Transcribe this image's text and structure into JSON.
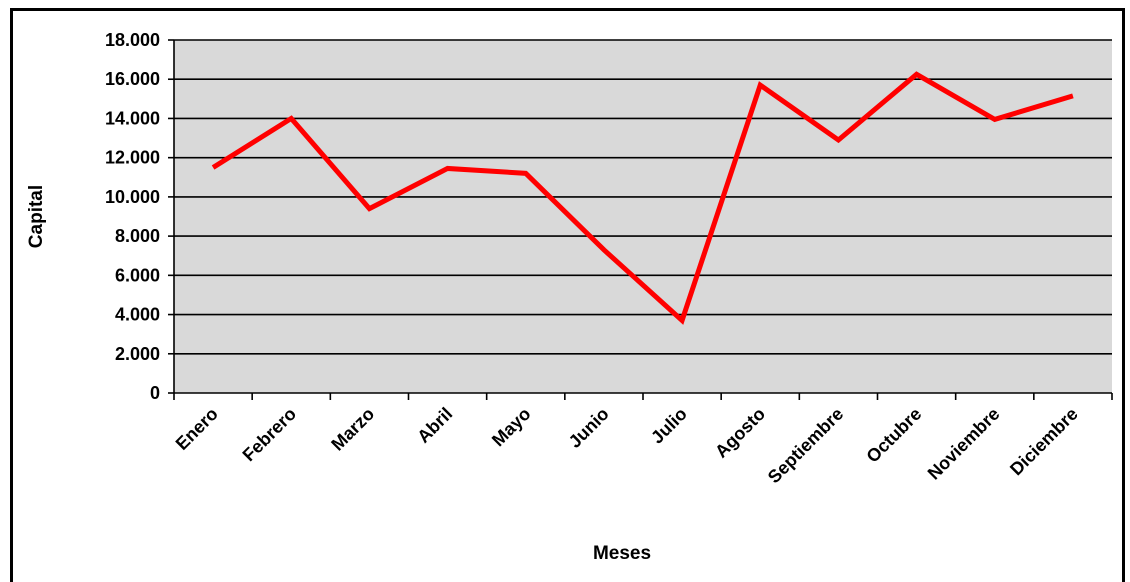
{
  "chart_data": {
    "type": "line",
    "title": "",
    "xlabel": "Meses",
    "ylabel": "Capital",
    "categories": [
      "Enero",
      "Febrero",
      "Marzo",
      "Abril",
      "Mayo",
      "Junio",
      "Julio",
      "Agosto",
      "Septiembre",
      "Octubre",
      "Noviembre",
      "Diciembre"
    ],
    "series": [
      {
        "values": [
          11500,
          14000,
          9400,
          11450,
          11200,
          7300,
          3700,
          15700,
          12900,
          16250,
          13950,
          15150
        ],
        "color": "#ff0000"
      }
    ],
    "ylim": [
      0,
      18000
    ],
    "yticks": [
      0,
      2000,
      4000,
      6000,
      8000,
      10000,
      12000,
      14000,
      16000,
      18000
    ],
    "ytick_labels": [
      "0",
      "2.000",
      "4.000",
      "6.000",
      "8.000",
      "10.000",
      "12.000",
      "14.000",
      "16.000",
      "18.000"
    ],
    "grid": true,
    "legend": "none",
    "plot_background": "#d9d9d9"
  }
}
